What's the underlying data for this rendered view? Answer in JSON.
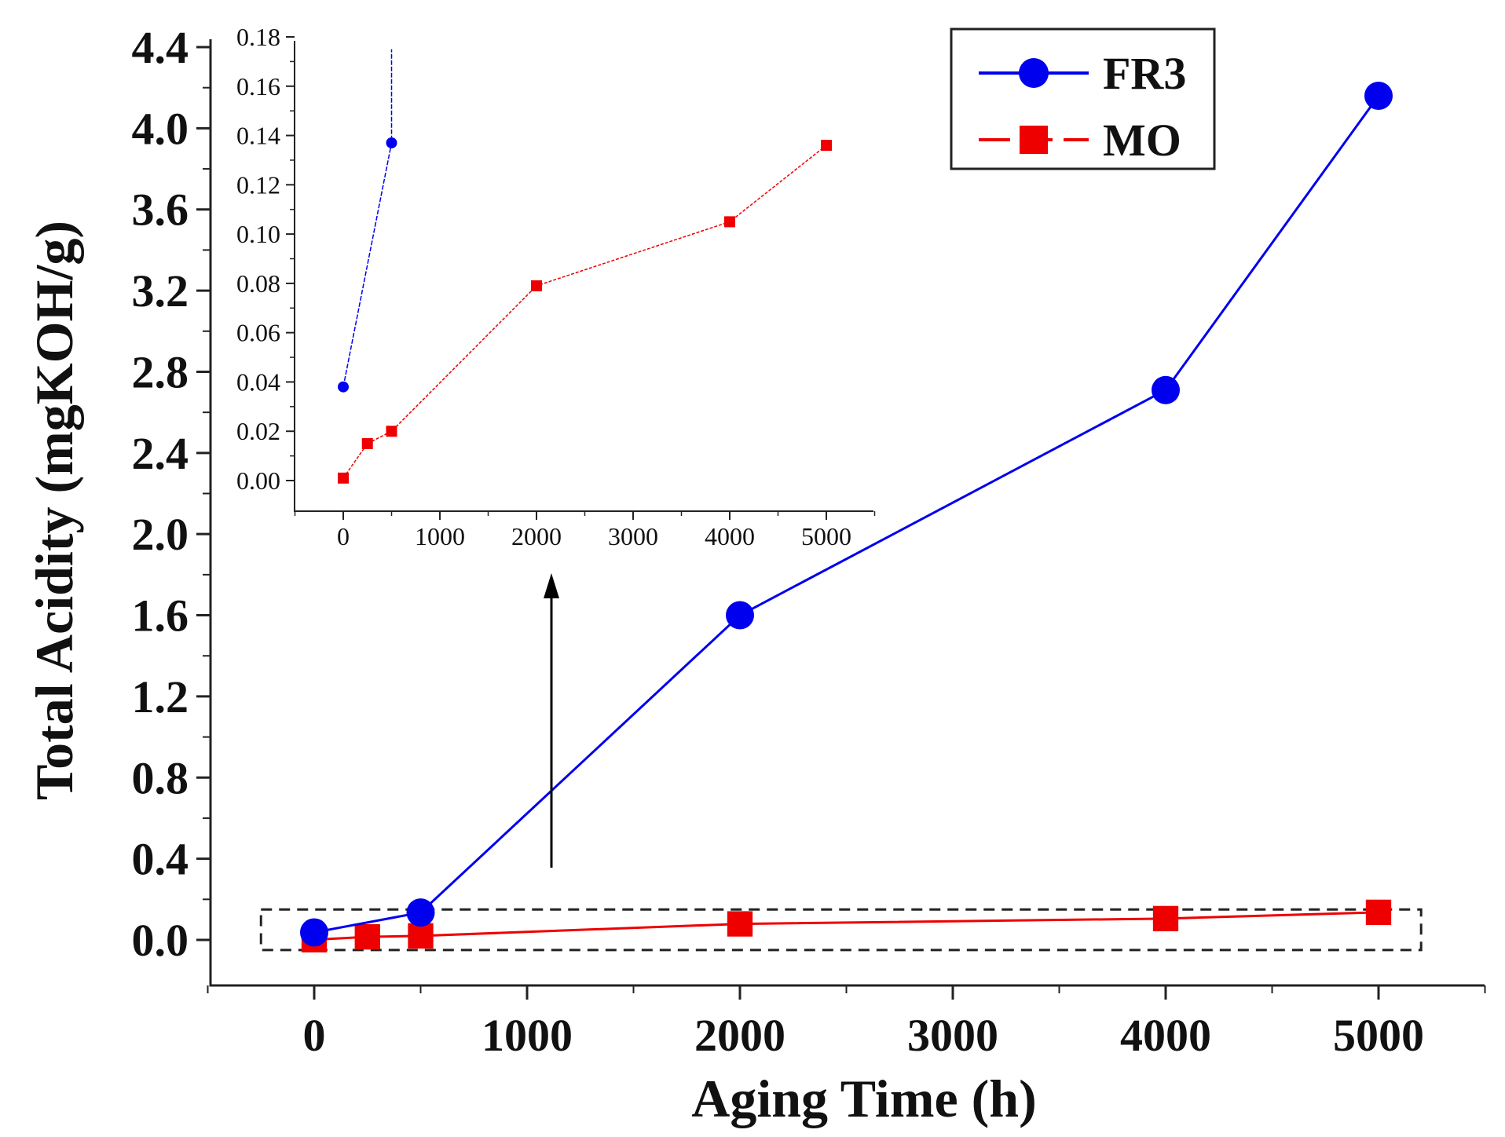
{
  "chart_data": {
    "type": "line",
    "xlabel": "Aging Time (h)",
    "ylabel": "Total Acidity (mgKOH/g)",
    "xlim": [
      -500,
      5500
    ],
    "ylim": [
      -0.2,
      4.5
    ],
    "x_ticks": [
      0,
      1000,
      2000,
      3000,
      4000,
      5000
    ],
    "x_tick_labels": [
      "0",
      "1000",
      "2000",
      "3000",
      "4000",
      "5000"
    ],
    "y_ticks": [
      0.0,
      0.4,
      0.8,
      1.2,
      1.6,
      2.0,
      2.4,
      2.8,
      3.2,
      3.6,
      4.0,
      4.4
    ],
    "y_tick_labels": [
      "0.0",
      "0.4",
      "0.8",
      "1.2",
      "1.6",
      "2.0",
      "2.4",
      "2.8",
      "3.2",
      "3.6",
      "4.0",
      "4.4"
    ],
    "legend": {
      "position": "top-right",
      "entries": [
        "FR3",
        "MO"
      ]
    },
    "series": [
      {
        "name": "FR3",
        "color": "#0000ee",
        "marker": "circle",
        "x": [
          0,
          500,
          2000,
          4000,
          5000
        ],
        "y": [
          0.037,
          0.135,
          1.6,
          2.71,
          4.16
        ]
      },
      {
        "name": "MO",
        "color": "#ee0000",
        "marker": "square",
        "x": [
          0,
          250,
          500,
          2000,
          4000,
          5000
        ],
        "y": [
          0.001,
          0.015,
          0.02,
          0.079,
          0.105,
          0.136
        ]
      }
    ],
    "inset": {
      "xlim": [
        -500,
        5500
      ],
      "ylim": [
        -0.01,
        0.18
      ],
      "x_ticks": [
        0,
        1000,
        2000,
        3000,
        4000,
        5000
      ],
      "x_tick_labels": [
        "0",
        "1000",
        "2000",
        "3000",
        "4000",
        "5000"
      ],
      "y_ticks": [
        0.0,
        0.02,
        0.04,
        0.06,
        0.08,
        0.1,
        0.12,
        0.14,
        0.16,
        0.18
      ],
      "y_tick_labels": [
        "0.00",
        "0.02",
        "0.04",
        "0.06",
        "0.08",
        "0.10",
        "0.12",
        "0.14",
        "0.16",
        "0.18"
      ],
      "series": [
        {
          "name": "FR3",
          "color": "#0000ee",
          "marker": "circle",
          "x": [
            0,
            500
          ],
          "y": [
            0.038,
            0.137
          ],
          "continues_to": [
            500,
            0.175
          ]
        },
        {
          "name": "MO",
          "color": "#ee0000",
          "marker": "square",
          "x": [
            0,
            250,
            500,
            2000,
            4000,
            5000
          ],
          "y": [
            0.001,
            0.015,
            0.02,
            0.079,
            0.105,
            0.136
          ]
        }
      ]
    },
    "zoom_region": {
      "xlim": [
        -250,
        5200
      ],
      "ylim": [
        -0.05,
        0.15
      ]
    }
  }
}
